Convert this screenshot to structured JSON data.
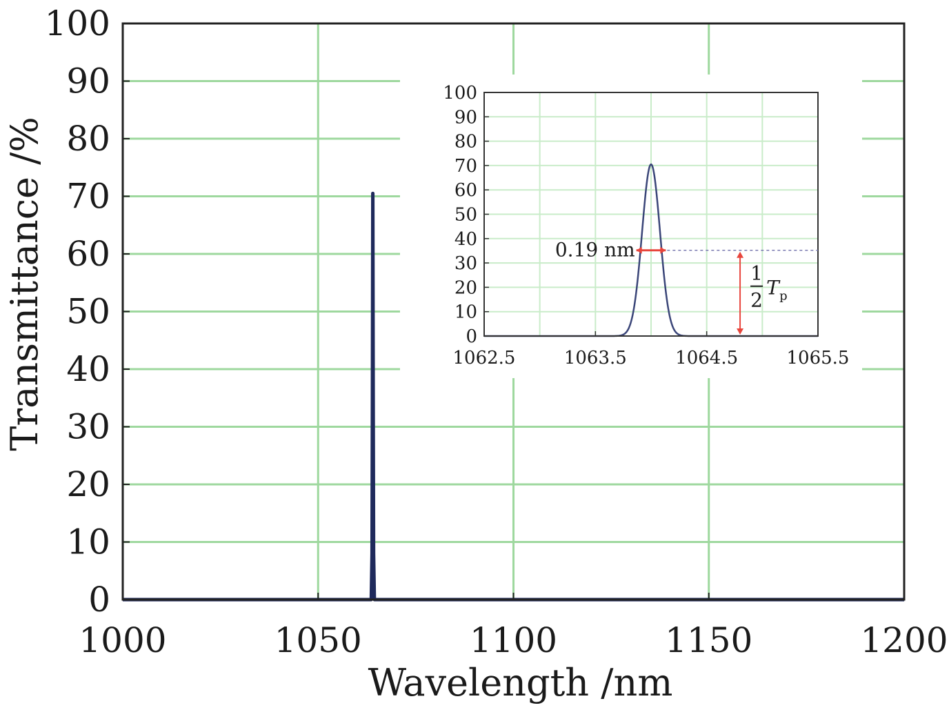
{
  "chart_data": [
    {
      "type": "line",
      "xlabel": "Wavelength /nm",
      "ylabel": "Transmittance /%",
      "xlim": [
        1000,
        1200
      ],
      "ylim": [
        0,
        100
      ],
      "x_ticks": [
        1000,
        1050,
        1100,
        1150,
        1200
      ],
      "y_ticks": [
        0,
        10,
        20,
        30,
        40,
        50,
        60,
        70,
        80,
        90,
        100
      ],
      "grid": true,
      "series": [
        {
          "x": [
            1000,
            1063.6,
            1063.8,
            1063.9,
            1064.0,
            1064.1,
            1064.2,
            1064.4,
            1200
          ],
          "y": [
            0,
            0,
            8,
            35,
            70.5,
            35,
            8,
            0,
            0
          ]
        }
      ],
      "colors": {
        "line": "#1f2a5c",
        "grid": "#9ed89e"
      }
    },
    {
      "type": "line",
      "position": "top-right",
      "xlim": [
        1062.5,
        1065.5
      ],
      "ylim": [
        0,
        100
      ],
      "x_ticks": [
        "1062.5",
        "1063.5",
        "1064.5",
        "1065.5"
      ],
      "y_ticks": [
        0,
        10,
        20,
        30,
        40,
        50,
        60,
        70,
        80,
        90,
        100
      ],
      "grid": true,
      "series": [
        {
          "center": 1064.0,
          "peak": 70.5,
          "fwhm": 0.19
        }
      ],
      "annotations": {
        "fwhm_label": "0.19 nm",
        "half_max_level": 35.2,
        "half_max_x": 1064.8,
        "half_label_num": "1",
        "half_label_den": "2",
        "half_label_var": "T",
        "half_label_sub": "p"
      },
      "colors": {
        "line": "#3a4578",
        "annotation": "#e8453c",
        "dashed": "#7a7ab0"
      }
    }
  ]
}
